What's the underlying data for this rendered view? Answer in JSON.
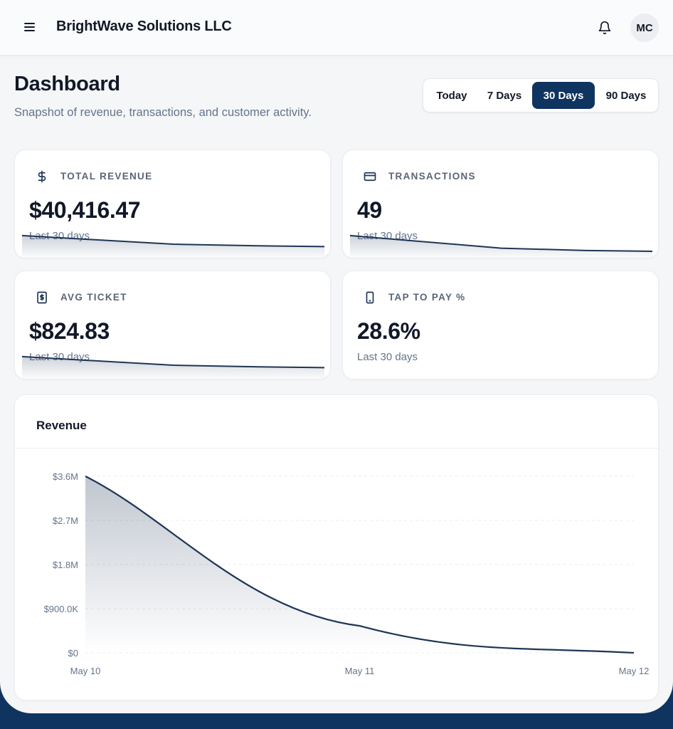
{
  "header": {
    "company": "BrightWave Solutions LLC",
    "avatar_initials": "MC",
    "icons": [
      "menu-icon",
      "bell-icon"
    ]
  },
  "page": {
    "title": "Dashboard",
    "subtitle": "Snapshot of revenue, transactions, and customer activity."
  },
  "range": {
    "options": [
      "Today",
      "7 Days",
      "30 Days",
      "90 Days"
    ],
    "selected": "30 Days"
  },
  "kpis": [
    {
      "label": "TOTAL REVENUE",
      "value": "$40,416.47",
      "period": "Last 30 days",
      "icon": "dollar-icon",
      "trend": [
        1.0,
        0.78,
        0.74,
        0.72
      ]
    },
    {
      "label": "TRANSACTIONS",
      "value": "49",
      "period": "Last 30 days",
      "icon": "credit-card-icon",
      "trend": [
        1.0,
        0.68,
        0.62,
        0.6
      ]
    },
    {
      "label": "AVG TICKET",
      "value": "$824.83",
      "period": "Last 30 days",
      "icon": "receipt-dollar-icon",
      "trend": [
        1.0,
        0.78,
        0.74,
        0.72
      ]
    },
    {
      "label": "TAP TO PAY %",
      "value": "28.6%",
      "period": "Last 30 days",
      "icon": "phone-icon"
    }
  ],
  "colors": {
    "accent": "#0f3460",
    "line": "#1f3556",
    "muted": "#64748b",
    "background": "#f5f6f8"
  },
  "chart_data": {
    "type": "area",
    "title": "Revenue",
    "x": [
      "May 10",
      "May 11",
      "May 12"
    ],
    "series": [
      {
        "values": [
          3600000,
          550000,
          0
        ]
      }
    ],
    "y_ticks": [
      "$0",
      "$900.0K",
      "$1.8M",
      "$2.7M",
      "$3.6M"
    ],
    "ylim": [
      0,
      3600000
    ],
    "grid": true
  }
}
